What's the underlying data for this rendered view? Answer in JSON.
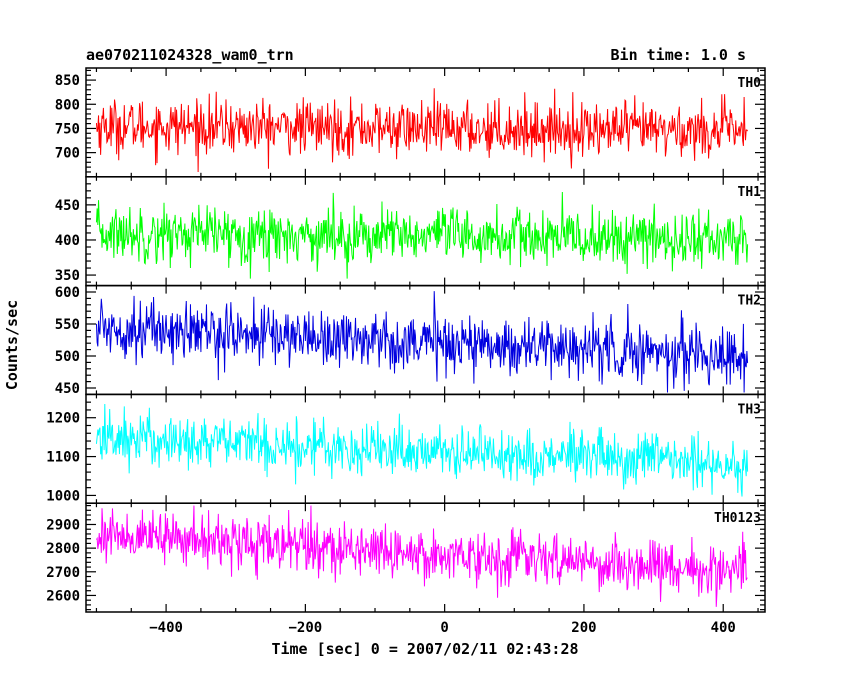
{
  "chart_data": {
    "type": "line",
    "title": "ae070211024328_wam0_trn",
    "bin_label": "Bin time: 1.0 s",
    "xlabel": "Time [sec] 0 = 2007/02/11 02:43:28",
    "ylabel": "Counts/sec",
    "xlim": [
      -515,
      460
    ],
    "x_start": -500,
    "x_end": 435,
    "x_step": 1,
    "xticks": [
      -400,
      -200,
      0,
      200,
      400
    ],
    "xtick_labels": [
      "−400",
      "−200",
      "0",
      "200",
      "400"
    ],
    "panels": [
      {
        "name": "TH0",
        "color": "#ff0000",
        "ylim": [
          650,
          875
        ],
        "yticks": [
          700,
          750,
          800,
          850
        ],
        "ytick_labels": [
          "700",
          "750",
          "800",
          "850"
        ],
        "trend_start": 755,
        "trend_end": 745,
        "noise_sigma": 28,
        "min": 660,
        "max": 870
      },
      {
        "name": "TH1",
        "color": "#00ff00",
        "ylim": [
          335,
          490
        ],
        "yticks": [
          350,
          400,
          450
        ],
        "ytick_labels": [
          "350",
          "400",
          "450"
        ],
        "trend_start": 410,
        "trend_end": 400,
        "noise_sigma": 20,
        "min": 345,
        "max": 485
      },
      {
        "name": "TH2",
        "color": "#0000e0",
        "ylim": [
          440,
          610
        ],
        "yticks": [
          450,
          500,
          550,
          600
        ],
        "ytick_labels": [
          "450",
          "500",
          "550",
          "600"
        ],
        "trend_start": 545,
        "trend_end": 500,
        "noise_sigma": 23,
        "min": 443,
        "max": 605
      },
      {
        "name": "TH3",
        "color": "#00ffff",
        "ylim": [
          980,
          1260
        ],
        "yticks": [
          1000,
          1100,
          1200
        ],
        "ytick_labels": [
          "1000",
          "1100",
          "1200"
        ],
        "trend_start": 1150,
        "trend_end": 1080,
        "noise_sigma": 35,
        "min": 990,
        "max": 1250
      },
      {
        "name": "TH0123",
        "color": "#ff00ff",
        "ylim": [
          2530,
          2990
        ],
        "yticks": [
          2600,
          2700,
          2800,
          2900
        ],
        "ytick_labels": [
          "2600",
          "2700",
          "2800",
          "2900"
        ],
        "trend_start": 2860,
        "trend_end": 2700,
        "noise_sigma": 55,
        "min": 2540,
        "max": 2980
      }
    ]
  }
}
